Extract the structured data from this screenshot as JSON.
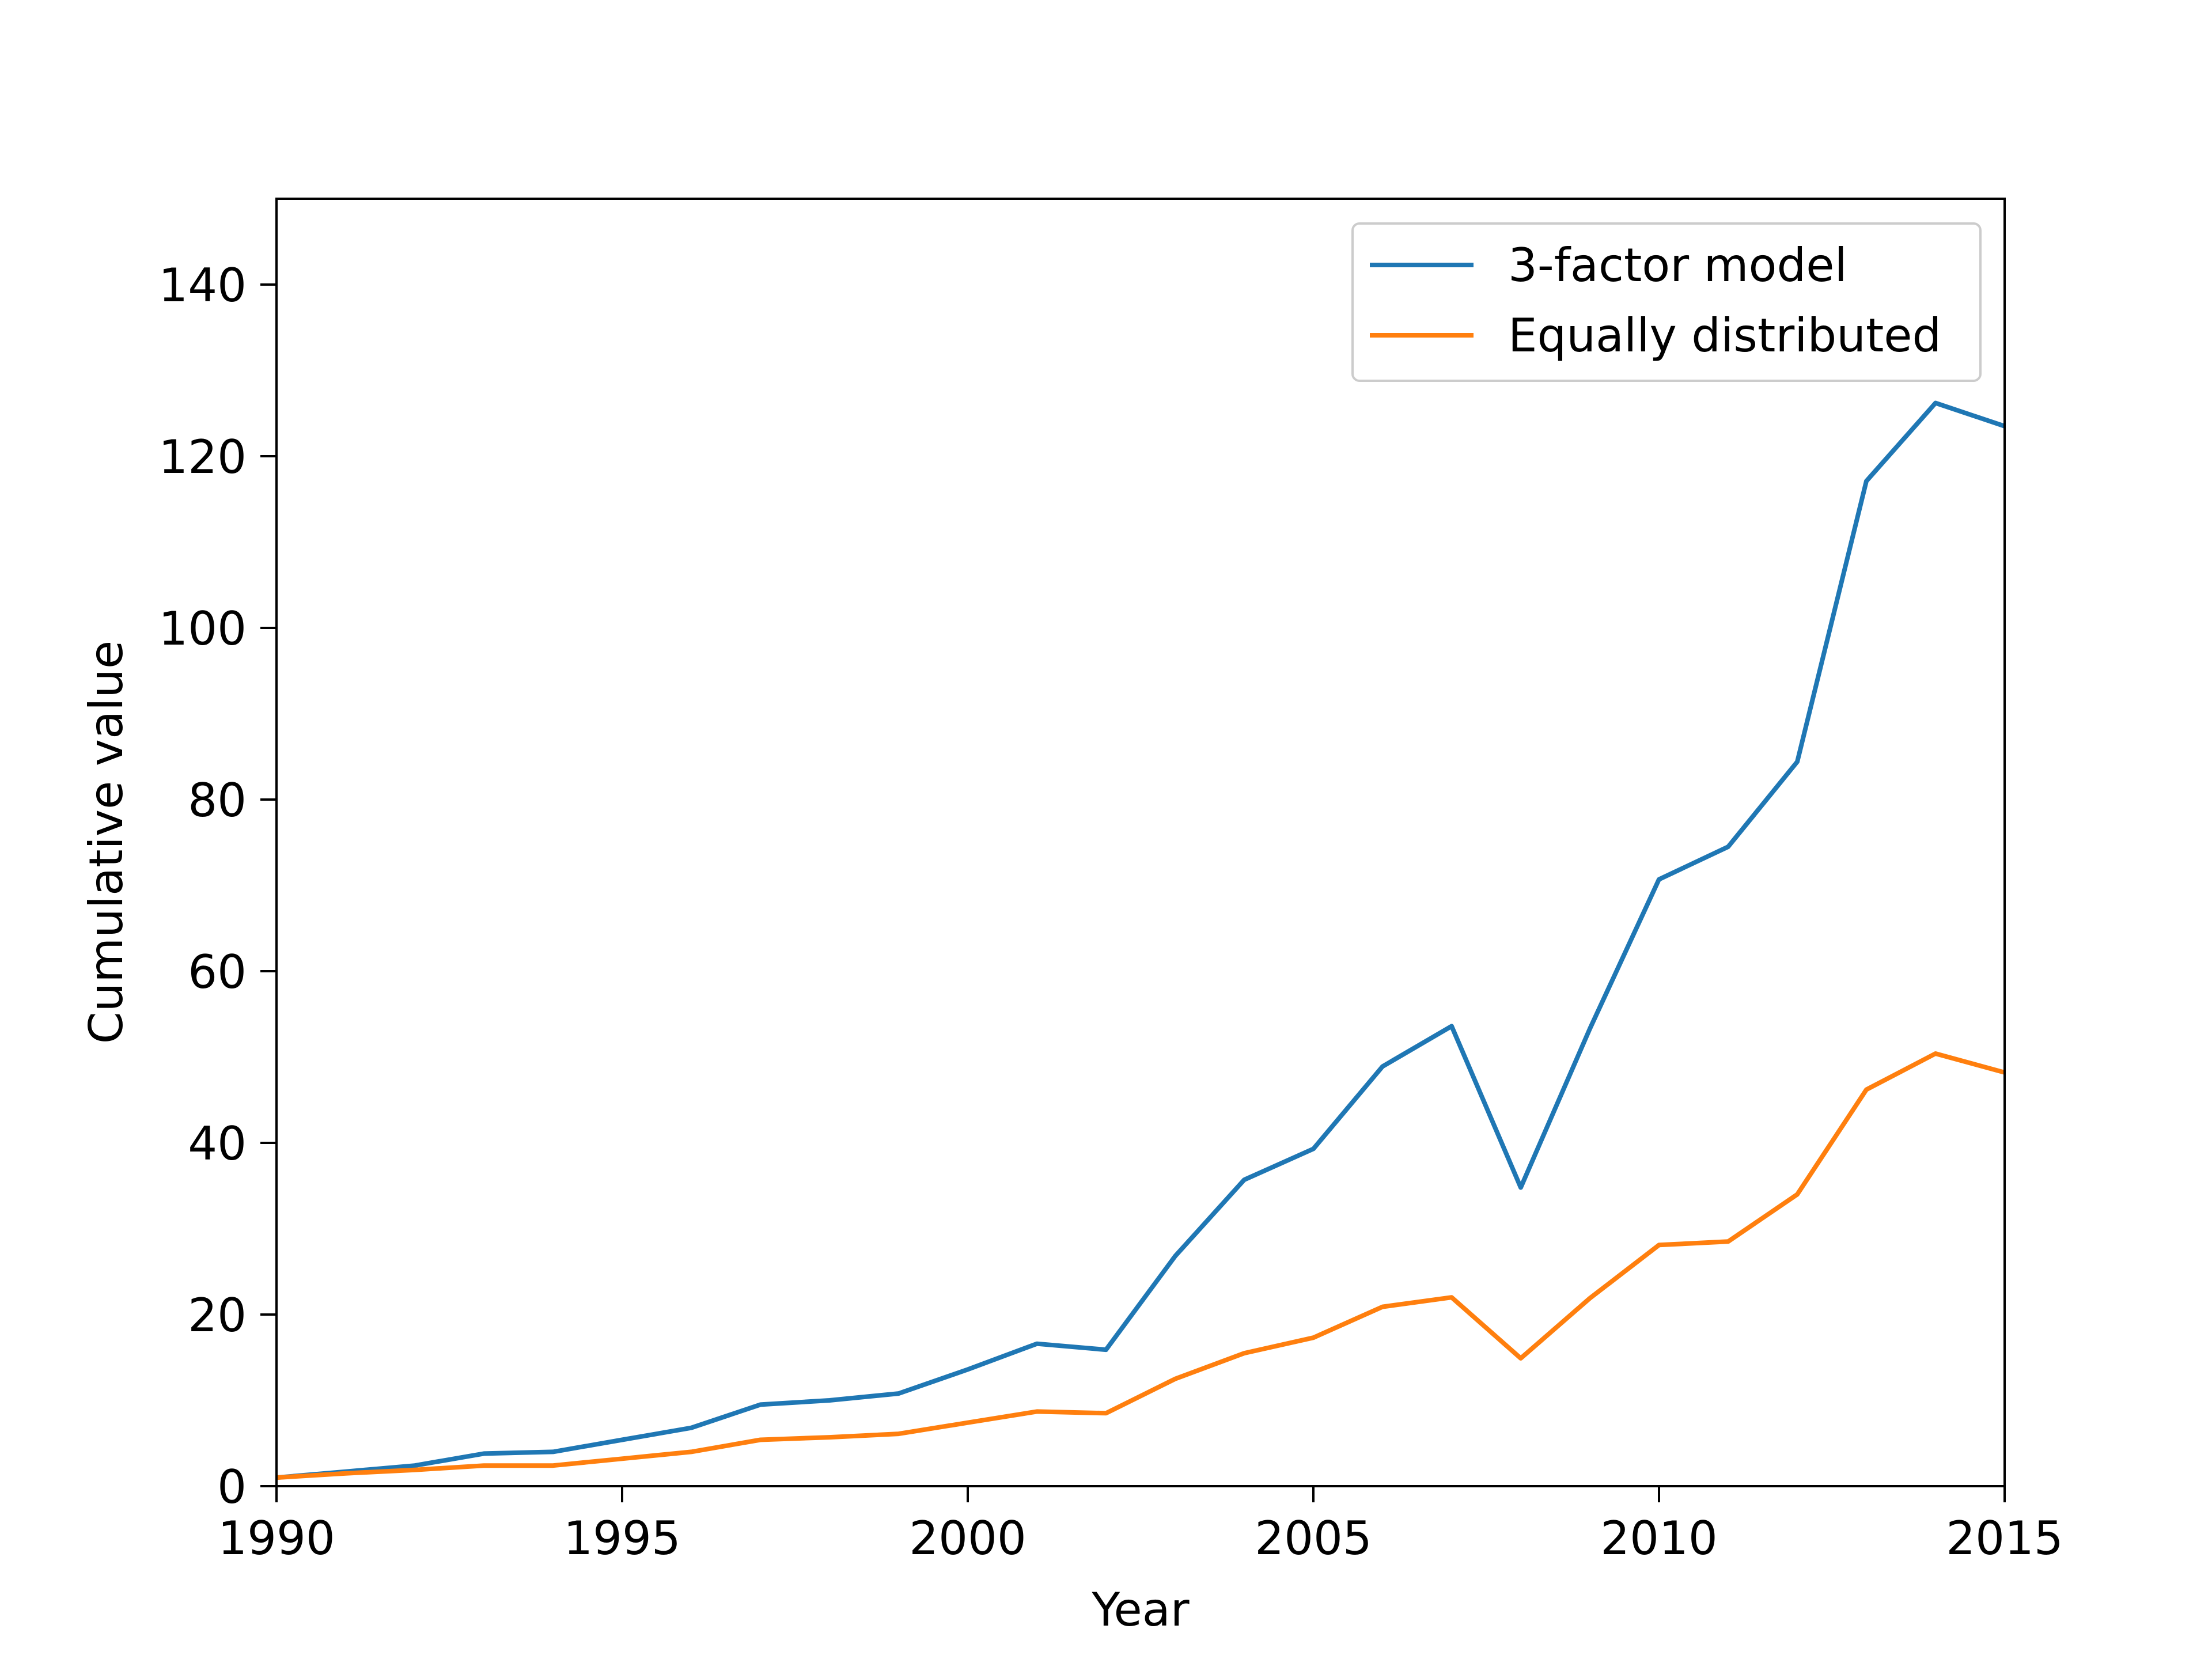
{
  "chart_data": {
    "type": "line",
    "title": "",
    "xlabel": "Year",
    "ylabel": "Cumulative value",
    "xlim": [
      1990,
      2015
    ],
    "ylim": [
      0,
      150
    ],
    "x_ticks": [
      1990,
      1995,
      2000,
      2005,
      2010,
      2015
    ],
    "y_ticks": [
      0,
      20,
      40,
      60,
      80,
      100,
      120,
      140
    ],
    "grid": false,
    "legend": "top-right",
    "x": [
      1990,
      1991,
      1992,
      1993,
      1994,
      1995,
      1996,
      1997,
      1998,
      1999,
      2000,
      2001,
      2002,
      2003,
      2004,
      2005,
      2006,
      2007,
      2008,
      2009,
      2010,
      2011,
      2012,
      2013,
      2014,
      2015
    ],
    "series": [
      {
        "name": "3-factor model",
        "color": "#1f77b4",
        "values": [
          1.0,
          1.7,
          2.4,
          3.8,
          4.0,
          5.4,
          6.8,
          9.5,
          10.0,
          10.8,
          13.6,
          16.6,
          15.9,
          26.8,
          35.7,
          39.3,
          48.9,
          53.6,
          34.8,
          53.3,
          70.7,
          74.5,
          84.4,
          117.1,
          126.2,
          123.5
        ]
      },
      {
        "name": "Equally distributed",
        "color": "#ff7f0e",
        "values": [
          1.0,
          1.5,
          1.9,
          2.4,
          2.4,
          3.2,
          4.0,
          5.4,
          5.7,
          6.1,
          7.4,
          8.7,
          8.5,
          12.5,
          15.5,
          17.3,
          20.9,
          22.0,
          14.9,
          21.9,
          28.1,
          28.5,
          34.0,
          46.2,
          50.4,
          48.2
        ]
      }
    ]
  }
}
